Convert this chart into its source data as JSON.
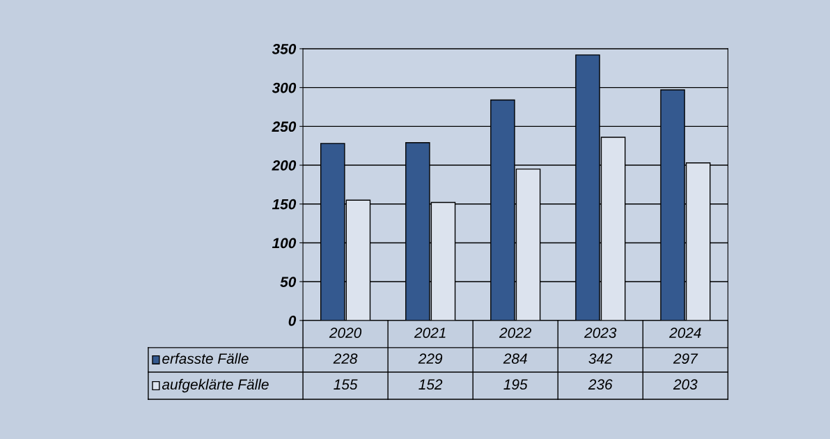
{
  "chart_data": {
    "type": "bar",
    "categories": [
      "2020",
      "2021",
      "2022",
      "2023",
      "2024"
    ],
    "series": [
      {
        "name": "erfasste Fälle",
        "color": "#34598f",
        "values": [
          228,
          229,
          284,
          342,
          297
        ]
      },
      {
        "name": "aufgeklärte Fälle",
        "color": "#dce3ee",
        "values": [
          155,
          152,
          195,
          236,
          203
        ]
      }
    ],
    "ylim": [
      0,
      350
    ],
    "yticks": [
      0,
      50,
      100,
      150,
      200,
      250,
      300,
      350
    ],
    "grid": "y",
    "legend": "bottom",
    "data_labels": true
  }
}
